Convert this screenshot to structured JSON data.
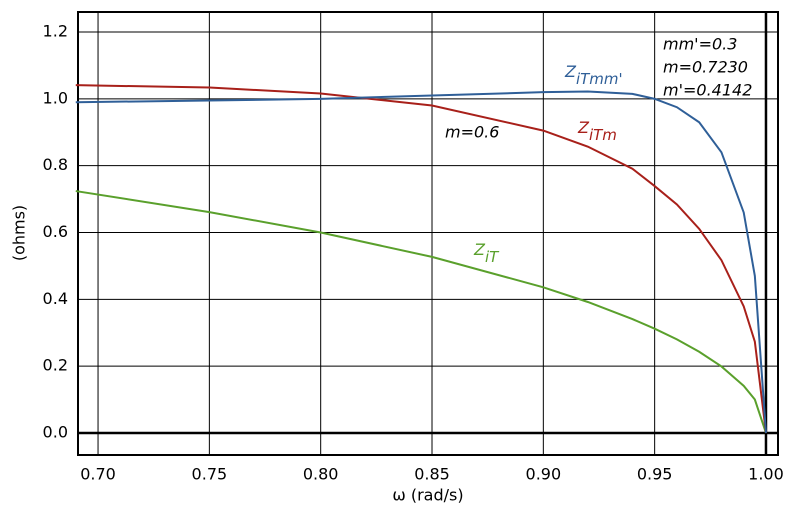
{
  "chart_data": {
    "type": "line",
    "xlabel": "ω (rad/s)",
    "ylabel": "(ohms)",
    "x": [
      0.69,
      0.75,
      0.8,
      0.85,
      0.9,
      0.92,
      0.94,
      0.95,
      0.96,
      0.97,
      0.98,
      0.99,
      0.995,
      1.0
    ],
    "series": [
      {
        "name": "Z",
        "subscript": "iT",
        "color": "#5aa02c",
        "values": [
          0.724,
          0.661,
          0.6,
          0.527,
          0.436,
          0.392,
          0.341,
          0.312,
          0.28,
          0.243,
          0.199,
          0.141,
          0.1,
          0
        ]
      },
      {
        "name": "Z",
        "subscript": "iTm",
        "color": "#a8201a",
        "values": [
          1.041,
          1.034,
          1.016,
          0.98,
          0.905,
          0.857,
          0.791,
          0.739,
          0.684,
          0.611,
          0.517,
          0.379,
          0.273,
          0
        ]
      },
      {
        "name": "Z",
        "subscript": "iTmm'",
        "color": "#2f5f98",
        "values": [
          0.99,
          0.995,
          1.0,
          1.01,
          1.02,
          1.022,
          1.015,
          1.0,
          0.975,
          0.93,
          0.84,
          0.66,
          0.47,
          0
        ]
      }
    ],
    "annotations": [
      {
        "text": "m=0.6",
        "color": "#a8201a"
      },
      {
        "text": "mm'=0.3",
        "color": "#2f5f98"
      },
      {
        "text": "m=0.7230",
        "color": "#2f5f98"
      },
      {
        "text": "m'=0.4142",
        "color": "#2f5f98"
      }
    ],
    "xlim": [
      0.691,
      1.0054
    ],
    "ylim": [
      -0.066,
      1.26
    ],
    "xticks": [
      {
        "value": 0.7,
        "label": "0.70"
      },
      {
        "value": 0.75,
        "label": "0.75"
      },
      {
        "value": 0.8,
        "label": "0.80"
      },
      {
        "value": 0.85,
        "label": "0.85"
      },
      {
        "value": 0.9,
        "label": "0.90"
      },
      {
        "value": 0.95,
        "label": "0.95"
      },
      {
        "value": 1.0,
        "label": "1.00"
      }
    ],
    "yticks": [
      {
        "value": 0,
        "label": "0.0"
      },
      0.2,
      0.4,
      0.6,
      0.8,
      {
        "value": 1.0,
        "label": "1.0"
      },
      1.2
    ],
    "grid": true
  }
}
